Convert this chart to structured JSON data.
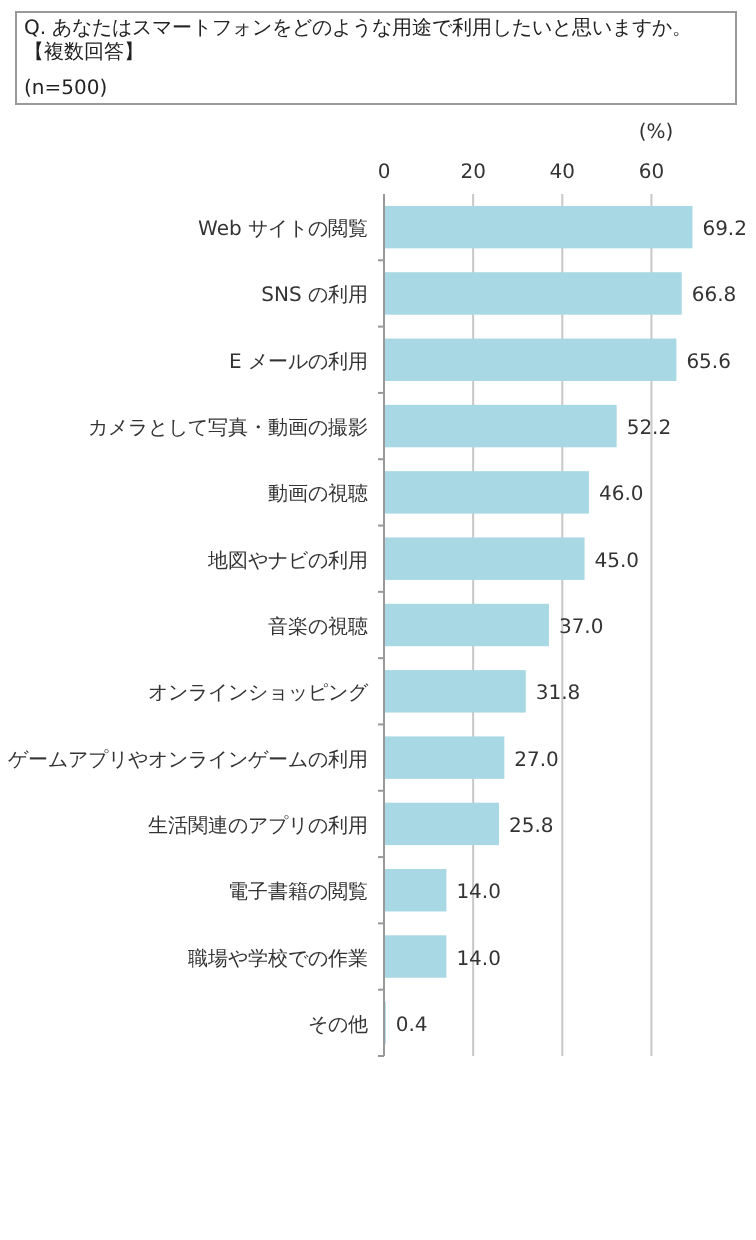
{
  "chart_data": {
    "type": "bar",
    "orientation": "horizontal",
    "title": "Q. あなたはスマートフォンをどのような用途で利用したいと思いますか。【複数回答】",
    "subtitle": "(n=500)",
    "xlabel": "(%)",
    "categories": [
      "Web サイトの閲覧",
      "SNS の利用",
      "E メールの利用",
      "カメラとして写真・動画の撮影",
      "動画の視聴",
      "地図やナビの利用",
      "音楽の視聴",
      "オンラインショッピング",
      "ゲームアプリやオンラインゲームの利用",
      "生活関連のアプリの利用",
      "電子書籍の閲覧",
      "職場や学校での作業",
      "その他"
    ],
    "values": [
      69.2,
      66.8,
      65.6,
      52.2,
      46.0,
      45.0,
      37.0,
      31.8,
      27.0,
      25.8,
      14.0,
      14.0,
      0.4
    ],
    "value_labels": [
      "69.2",
      "66.8",
      "65.6",
      "52.2",
      "46.0",
      "45.0",
      "37.0",
      "31.8",
      "27.0",
      "25.8",
      "14.0",
      "14.0",
      "0.4"
    ],
    "color": "#a8d8e3",
    "xlim": [
      0,
      70
    ],
    "xticks": [
      0,
      20,
      40,
      60
    ],
    "grid": "x"
  }
}
